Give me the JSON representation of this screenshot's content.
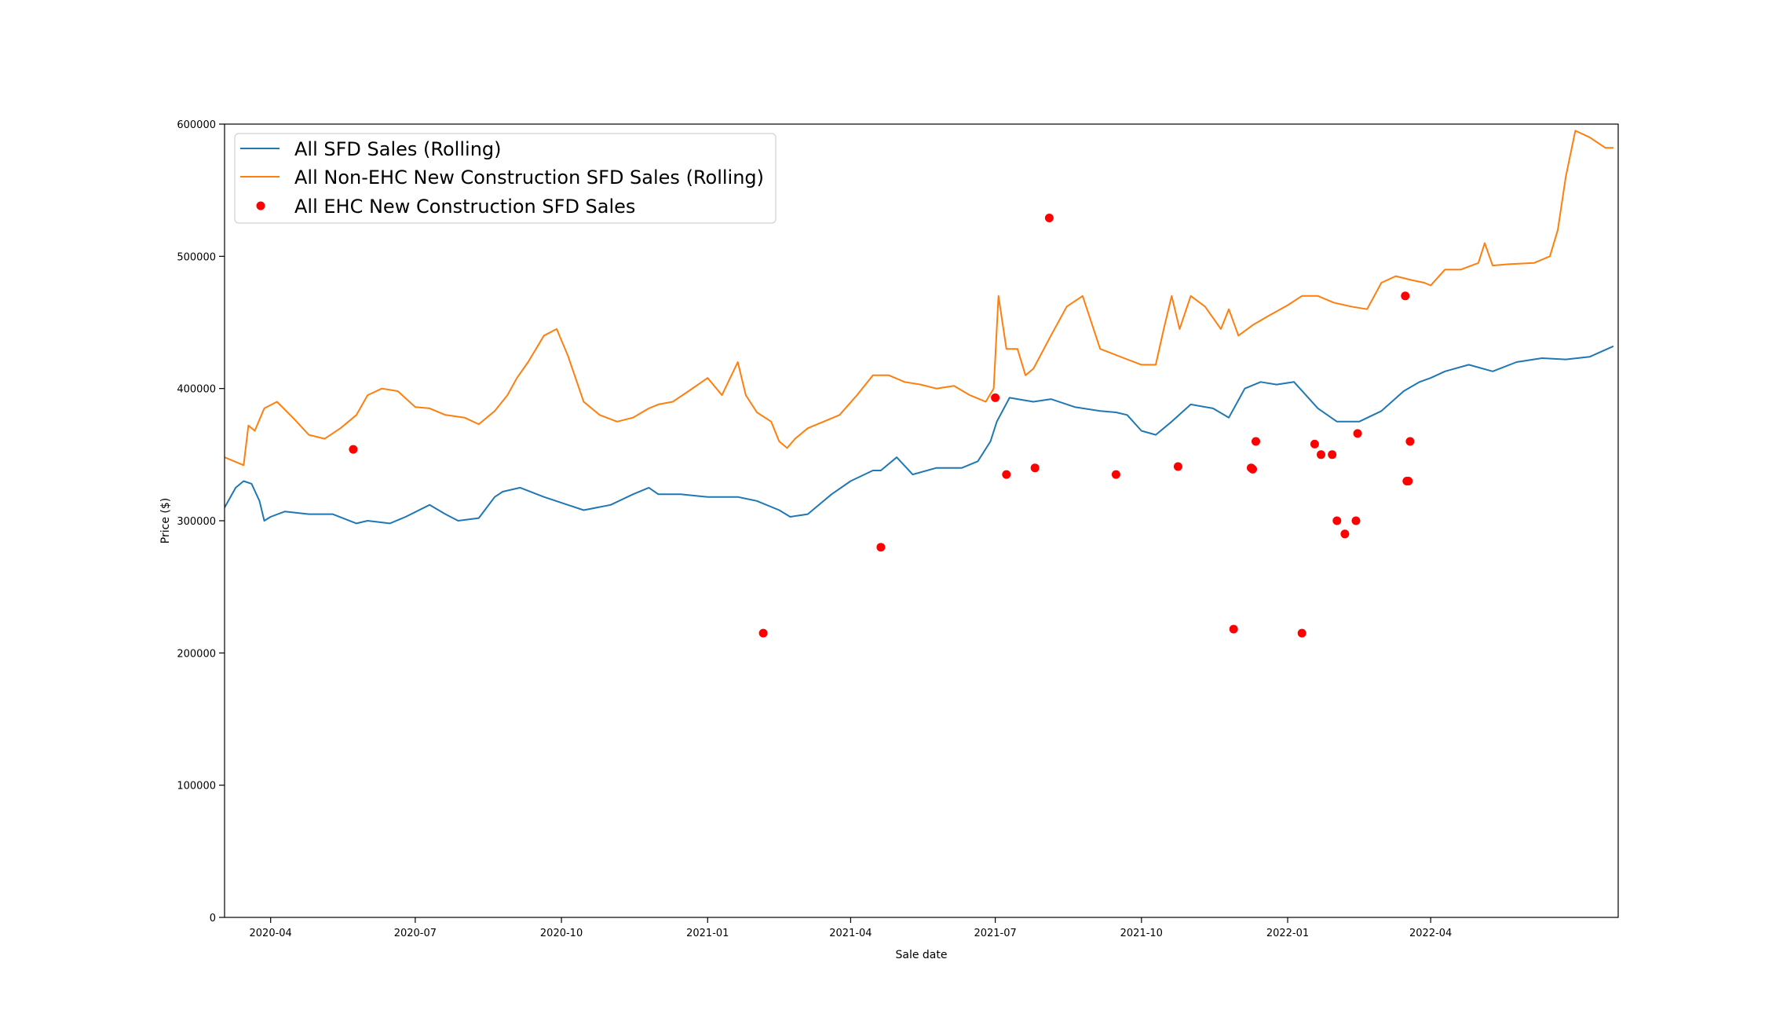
{
  "chart_data": {
    "type": "line",
    "title": "",
    "xlabel": "Sale date",
    "ylabel": "Price ($)",
    "xlim": [
      "2020-03-03",
      "2022-07-28"
    ],
    "ylim": [
      0,
      600000
    ],
    "grid": false,
    "legend_position": "top-left",
    "x_ticks": [
      "2020-04",
      "2020-07",
      "2020-10",
      "2021-01",
      "2021-04",
      "2021-07",
      "2021-10",
      "2022-01",
      "2022-04"
    ],
    "y_ticks": [
      "0",
      "100000",
      "200000",
      "300000",
      "400000",
      "500000",
      "600000"
    ],
    "series": [
      {
        "name": "All SFD Sales (Rolling)",
        "type": "line",
        "color": "#1f77b4",
        "x": [
          "2020-03-03",
          "2020-03-10",
          "2020-03-15",
          "2020-03-20",
          "2020-03-25",
          "2020-03-28",
          "2020-04-01",
          "2020-04-10",
          "2020-04-25",
          "2020-05-10",
          "2020-05-25",
          "2020-06-01",
          "2020-06-15",
          "2020-06-25",
          "2020-07-10",
          "2020-07-20",
          "2020-07-28",
          "2020-08-10",
          "2020-08-20",
          "2020-08-25",
          "2020-09-05",
          "2020-09-20",
          "2020-10-05",
          "2020-10-15",
          "2020-11-01",
          "2020-11-15",
          "2020-11-25",
          "2020-12-01",
          "2020-12-15",
          "2021-01-01",
          "2021-01-20",
          "2021-02-01",
          "2021-02-15",
          "2021-02-22",
          "2021-03-05",
          "2021-03-20",
          "2021-04-01",
          "2021-04-15",
          "2021-04-20",
          "2021-04-30",
          "2021-05-10",
          "2021-05-25",
          "2021-06-10",
          "2021-06-20",
          "2021-06-28",
          "2021-07-02",
          "2021-07-10",
          "2021-07-25",
          "2021-08-05",
          "2021-08-20",
          "2021-09-05",
          "2021-09-15",
          "2021-09-22",
          "2021-10-01",
          "2021-10-10",
          "2021-10-20",
          "2021-11-01",
          "2021-11-15",
          "2021-11-25",
          "2021-12-05",
          "2021-12-15",
          "2021-12-25",
          "2022-01-05",
          "2022-01-20",
          "2022-02-01",
          "2022-02-15",
          "2022-03-01",
          "2022-03-15",
          "2022-03-25",
          "2022-04-01",
          "2022-04-10",
          "2022-04-25",
          "2022-05-10",
          "2022-05-25",
          "2022-06-10",
          "2022-06-25",
          "2022-07-10",
          "2022-07-25"
        ],
        "y": [
          310000,
          325000,
          330000,
          328000,
          315000,
          300000,
          303000,
          307000,
          305000,
          305000,
          298000,
          300000,
          298000,
          303000,
          312000,
          305000,
          300000,
          302000,
          318000,
          322000,
          325000,
          318000,
          312000,
          308000,
          312000,
          320000,
          325000,
          320000,
          320000,
          318000,
          318000,
          315000,
          308000,
          303000,
          305000,
          320000,
          330000,
          338000,
          338000,
          348000,
          335000,
          340000,
          340000,
          345000,
          360000,
          375000,
          393000,
          390000,
          392000,
          386000,
          383000,
          382000,
          380000,
          368000,
          365000,
          375000,
          388000,
          385000,
          378000,
          400000,
          405000,
          403000,
          405000,
          385000,
          375000,
          375000,
          383000,
          398000,
          405000,
          408000,
          413000,
          418000,
          413000,
          420000,
          423000,
          422000,
          424000,
          432000
        ]
      },
      {
        "name": "All Non-EHC New Construction SFD Sales (Rolling)",
        "type": "line",
        "color": "#ff7f0e",
        "x": [
          "2020-03-03",
          "2020-03-15",
          "2020-03-18",
          "2020-03-22",
          "2020-03-28",
          "2020-04-05",
          "2020-04-15",
          "2020-04-25",
          "2020-05-05",
          "2020-05-15",
          "2020-05-25",
          "2020-06-01",
          "2020-06-10",
          "2020-06-20",
          "2020-07-01",
          "2020-07-10",
          "2020-07-20",
          "2020-08-01",
          "2020-08-10",
          "2020-08-20",
          "2020-08-28",
          "2020-09-03",
          "2020-09-10",
          "2020-09-20",
          "2020-09-28",
          "2020-10-05",
          "2020-10-15",
          "2020-10-25",
          "2020-11-05",
          "2020-11-15",
          "2020-11-25",
          "2020-12-01",
          "2020-12-10",
          "2020-12-20",
          "2021-01-01",
          "2021-01-10",
          "2021-01-20",
          "2021-01-25",
          "2021-02-01",
          "2021-02-10",
          "2021-02-15",
          "2021-02-20",
          "2021-02-25",
          "2021-03-05",
          "2021-03-15",
          "2021-03-25",
          "2021-04-05",
          "2021-04-15",
          "2021-04-25",
          "2021-05-05",
          "2021-05-15",
          "2021-05-25",
          "2021-06-05",
          "2021-06-15",
          "2021-06-25",
          "2021-06-30",
          "2021-07-03",
          "2021-07-08",
          "2021-07-15",
          "2021-07-20",
          "2021-07-25",
          "2021-08-05",
          "2021-08-15",
          "2021-08-25",
          "2021-09-05",
          "2021-09-20",
          "2021-10-01",
          "2021-10-10",
          "2021-10-15",
          "2021-10-20",
          "2021-10-25",
          "2021-11-01",
          "2021-11-10",
          "2021-11-20",
          "2021-11-25",
          "2021-12-01",
          "2021-12-10",
          "2021-12-20",
          "2022-01-01",
          "2022-01-10",
          "2022-01-20",
          "2022-01-30",
          "2022-02-10",
          "2022-02-20",
          "2022-03-01",
          "2022-03-10",
          "2022-03-20",
          "2022-03-28",
          "2022-04-01",
          "2022-04-10",
          "2022-04-20",
          "2022-05-01",
          "2022-05-05",
          "2022-05-10",
          "2022-05-20",
          "2022-06-05",
          "2022-06-15",
          "2022-06-20",
          "2022-06-25",
          "2022-07-01",
          "2022-07-10",
          "2022-07-20",
          "2022-07-25"
        ],
        "y": [
          348000,
          342000,
          372000,
          368000,
          385000,
          390000,
          378000,
          365000,
          362000,
          370000,
          380000,
          395000,
          400000,
          398000,
          386000,
          385000,
          380000,
          378000,
          373000,
          383000,
          395000,
          408000,
          420000,
          440000,
          445000,
          425000,
          390000,
          380000,
          375000,
          378000,
          385000,
          388000,
          390000,
          398000,
          408000,
          395000,
          420000,
          395000,
          382000,
          375000,
          360000,
          355000,
          362000,
          370000,
          375000,
          380000,
          395000,
          410000,
          410000,
          405000,
          403000,
          400000,
          402000,
          395000,
          390000,
          400000,
          470000,
          430000,
          430000,
          410000,
          415000,
          440000,
          462000,
          470000,
          430000,
          423000,
          418000,
          418000,
          445000,
          470000,
          445000,
          470000,
          462000,
          445000,
          460000,
          440000,
          448000,
          455000,
          463000,
          470000,
          470000,
          465000,
          462000,
          460000,
          480000,
          485000,
          482000,
          480000,
          478000,
          490000,
          490000,
          495000,
          510000,
          493000,
          494000,
          495000,
          500000,
          520000,
          560000,
          595000,
          590000,
          582000,
          582000
        ]
      },
      {
        "name": "All EHC New Construction SFD Sales",
        "type": "scatter",
        "color": "#ff0000",
        "x": [
          "2020-05-23",
          "2021-02-05",
          "2021-04-20",
          "2021-07-01",
          "2021-07-08",
          "2021-07-26",
          "2021-08-04",
          "2021-09-15",
          "2021-10-24",
          "2021-11-28",
          "2021-12-10",
          "2021-12-12",
          "2022-01-10",
          "2022-01-18",
          "2022-01-22",
          "2022-01-29",
          "2022-02-01",
          "2022-02-06",
          "2022-02-13",
          "2022-02-14",
          "2022-03-16",
          "2022-03-17",
          "2022-03-19"
        ],
        "y": [
          354000,
          215000,
          280000,
          393000,
          335000,
          340000,
          529000,
          335000,
          341000,
          218000,
          339000,
          360000,
          215000,
          358000,
          350000,
          350000,
          300000,
          290000,
          300000,
          366000,
          470000,
          330000,
          360000
        ],
        "extra_points": [
          [
            "2022-03-18",
            330000
          ],
          [
            "2021-12-09",
            340000
          ]
        ]
      }
    ]
  }
}
